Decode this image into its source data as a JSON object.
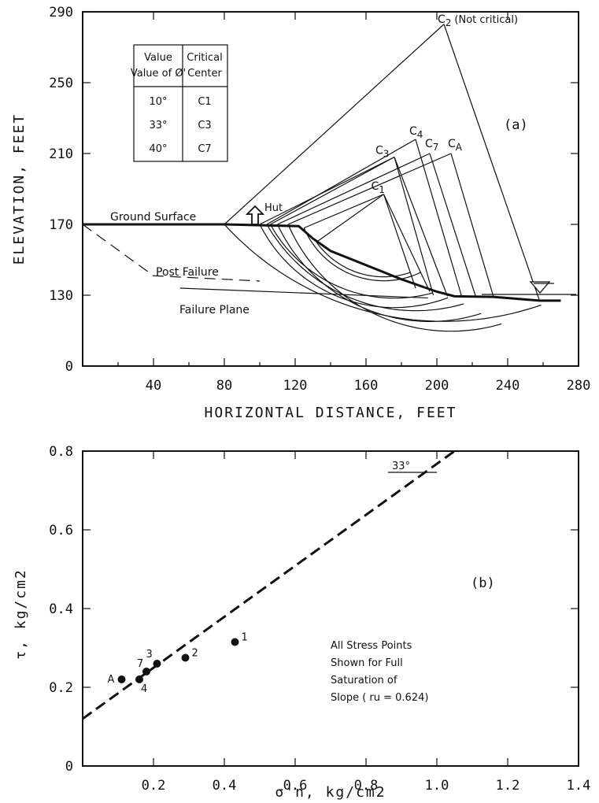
{
  "chart_data": [
    {
      "id": "a",
      "type": "line",
      "panel_label": "(a)",
      "xlabel": "HORIZONTAL DISTANCE, FEET",
      "ylabel": "ELEVATION, FEET",
      "xticks": [
        "40",
        "80",
        "120",
        "160",
        "200",
        "240",
        "280"
      ],
      "yticks": [
        "0",
        "130",
        "170",
        "210",
        "250",
        "290"
      ],
      "xlim": [
        0,
        280
      ],
      "ylim": [
        0,
        290
      ],
      "ground_profile": {
        "name": "Ground Surface",
        "x": [
          0,
          80,
          122,
          130,
          140,
          160,
          180,
          200,
          210,
          232,
          258,
          270
        ],
        "y": [
          170,
          170,
          169,
          162,
          155,
          147,
          139,
          132,
          128,
          127,
          120,
          120
        ]
      },
      "post_failure": {
        "name": "Post Failure",
        "x": [
          0,
          40,
          100
        ],
        "y": [
          170,
          141,
          138
        ]
      },
      "failure_plane": {
        "name": "Failure Plane",
        "x": [
          55,
          195
        ],
        "y": [
          134,
          125
        ]
      },
      "centers": [
        {
          "label": "C2",
          "note": "(Not critical)",
          "x": 204,
          "y": 283
        },
        {
          "label": "C4",
          "x": 188,
          "y": 218
        },
        {
          "label": "C3",
          "x": 176,
          "y": 208
        },
        {
          "label": "C7",
          "x": 196,
          "y": 210
        },
        {
          "label": "CA",
          "x": 208,
          "y": 210
        },
        {
          "label": "C1",
          "x": 170,
          "y": 187
        }
      ],
      "hut_label": "Hut",
      "water_table_elevation": 130,
      "table": {
        "headers": [
          "Value of Ø'",
          "Critical Center"
        ],
        "rows": [
          [
            "10°",
            "C1"
          ],
          [
            "33°",
            "C3"
          ],
          [
            "40°",
            "C7"
          ]
        ]
      }
    },
    {
      "id": "b",
      "type": "scatter",
      "panel_label": "(b)",
      "xlabel": "σ'n, kg/cm2",
      "ylabel": "τ, kg/cm2",
      "xticks": [
        "0.2",
        "0.4",
        "0.6",
        "0.8",
        "1.0",
        "1.2",
        "1.4"
      ],
      "yticks": [
        "0",
        "0.2",
        "0.4",
        "0.6",
        "0.8"
      ],
      "xlim": [
        0,
        1.4
      ],
      "ylim": [
        0,
        0.8
      ],
      "points": [
        {
          "label": "A",
          "x": 0.11,
          "y": 0.22
        },
        {
          "label": "4",
          "x": 0.16,
          "y": 0.22
        },
        {
          "label": "7",
          "x": 0.18,
          "y": 0.24
        },
        {
          "label": "3",
          "x": 0.21,
          "y": 0.26
        },
        {
          "label": "2",
          "x": 0.29,
          "y": 0.275
        },
        {
          "label": "1",
          "x": 0.43,
          "y": 0.315
        }
      ],
      "envelope": {
        "x": [
          0,
          1.05
        ],
        "y": [
          0.12,
          0.8
        ],
        "label": "33°"
      },
      "annotation": [
        "All Stress Points",
        "Shown for Full",
        "Saturation of",
        "Slope ( ru = 0.624)"
      ]
    }
  ]
}
